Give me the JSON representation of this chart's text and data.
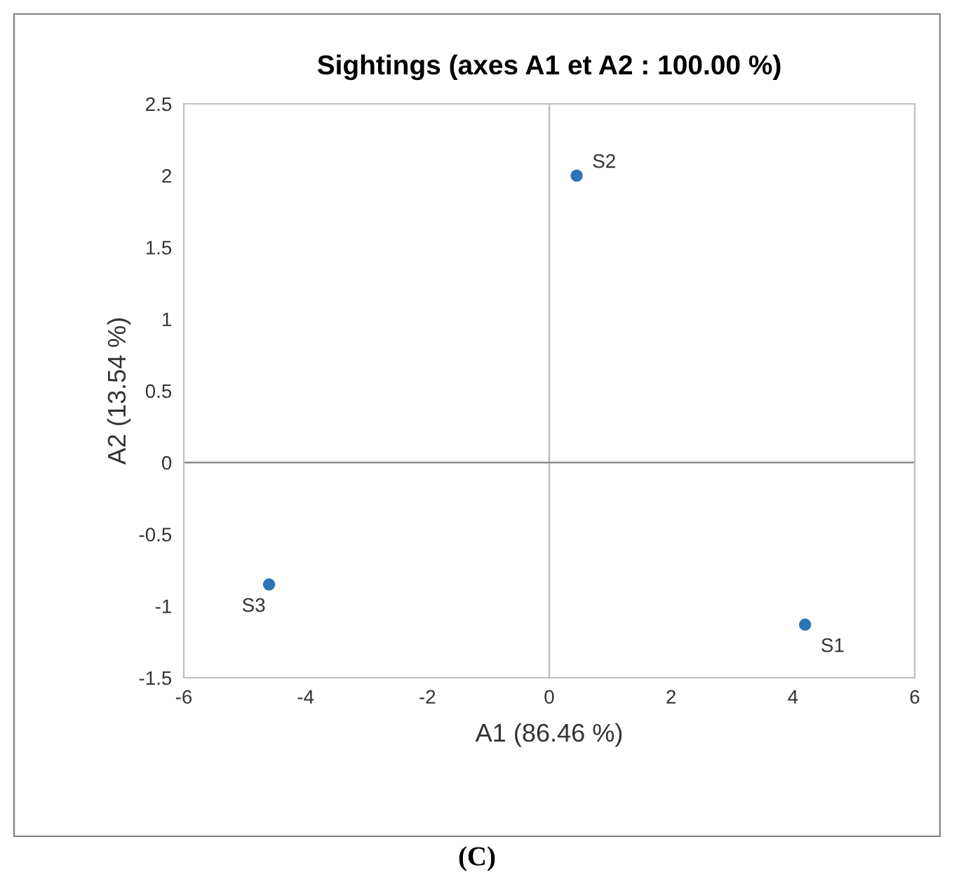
{
  "chart_data": {
    "type": "scatter",
    "title": "Sightings (axes A1 et A2 : 100.00 %)",
    "xlabel": "A1 (86.46 %)",
    "ylabel": "A2 (13.54 %)",
    "x": [
      4.2,
      0.45,
      -4.6
    ],
    "series": [
      {
        "color": "#2e75b6",
        "values": [
          -1.13,
          2.0,
          -0.85
        ]
      }
    ],
    "marker": "circle",
    "xlim": [
      -6,
      6
    ],
    "xticks": [
      -6,
      -4,
      -2,
      0,
      2,
      4,
      6
    ],
    "ylim": [
      -1.5,
      2.5
    ],
    "yticks": [
      -1.5,
      -1,
      -0.5,
      0,
      0.5,
      1,
      1.5,
      2,
      2.5
    ],
    "ref_lines": [
      {
        "axis": "x",
        "value": 0,
        "color": "#bfbfbf"
      },
      {
        "axis": "y",
        "value": 0,
        "color": "#8c8c8c"
      }
    ],
    "grid": false,
    "annotations": [
      {
        "text": "S1",
        "x": 4.2,
        "y": -1.13
      },
      {
        "text": "S2",
        "x": 0.45,
        "y": 2.0
      },
      {
        "text": "S3",
        "x": -4.6,
        "y": -0.85
      },
      "(C)"
    ]
  }
}
